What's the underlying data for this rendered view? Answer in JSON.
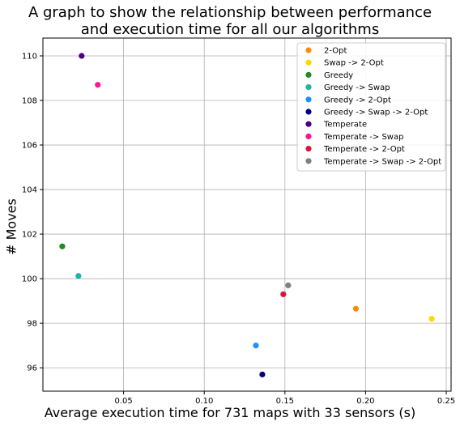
{
  "chart_data": {
    "type": "scatter",
    "title_lines": [
      "A graph to show the relationship between performance",
      "and execution time for all our algorithms"
    ],
    "xlabel": "Average execution time for 731 maps with 33 sensors (s)",
    "ylabel": "# Moves",
    "xlim": [
      0.0,
      0.253
    ],
    "ylim": [
      94.95,
      110.8
    ],
    "xticks": [
      0.05,
      0.1,
      0.15,
      0.2,
      0.25
    ],
    "xtick_labels": [
      "0.05",
      "0.10",
      "0.15",
      "0.20",
      "0.25"
    ],
    "yticks": [
      96,
      98,
      100,
      102,
      104,
      106,
      108,
      110
    ],
    "ytick_labels": [
      "96",
      "98",
      "100",
      "102",
      "104",
      "106",
      "108",
      "110"
    ],
    "grid": true,
    "legend_position": "top-right",
    "series": [
      {
        "name": "2-Opt",
        "color": "#ff8c00",
        "x": [
          0.194
        ],
        "y": [
          98.65
        ]
      },
      {
        "name": "Swap -> 2-Opt",
        "color": "#ffd700",
        "x": [
          0.241
        ],
        "y": [
          98.2
        ]
      },
      {
        "name": "Greedy",
        "color": "#228b22",
        "x": [
          0.012
        ],
        "y": [
          101.45
        ]
      },
      {
        "name": "Greedy -> Swap",
        "color": "#20b2aa",
        "x": [
          0.022
        ],
        "y": [
          100.12
        ]
      },
      {
        "name": "Greedy -> 2-Opt",
        "color": "#1e90ff",
        "x": [
          0.132
        ],
        "y": [
          97.0
        ]
      },
      {
        "name": "Greedy -> Swap -> 2-Opt",
        "color": "#000080",
        "x": [
          0.136
        ],
        "y": [
          95.7
        ]
      },
      {
        "name": "Temperate",
        "color": "#4b0082",
        "x": [
          0.024
        ],
        "y": [
          110.0
        ]
      },
      {
        "name": "Temperate -> Swap",
        "color": "#ff1493",
        "x": [
          0.034
        ],
        "y": [
          108.7
        ]
      },
      {
        "name": "Temperate -> 2-Opt",
        "color": "#dc143c",
        "x": [
          0.149
        ],
        "y": [
          99.3
        ]
      },
      {
        "name": "Temperate -> Swap -> 2-Opt",
        "color": "#808080",
        "x": [
          0.152
        ],
        "y": [
          99.7
        ]
      }
    ]
  }
}
